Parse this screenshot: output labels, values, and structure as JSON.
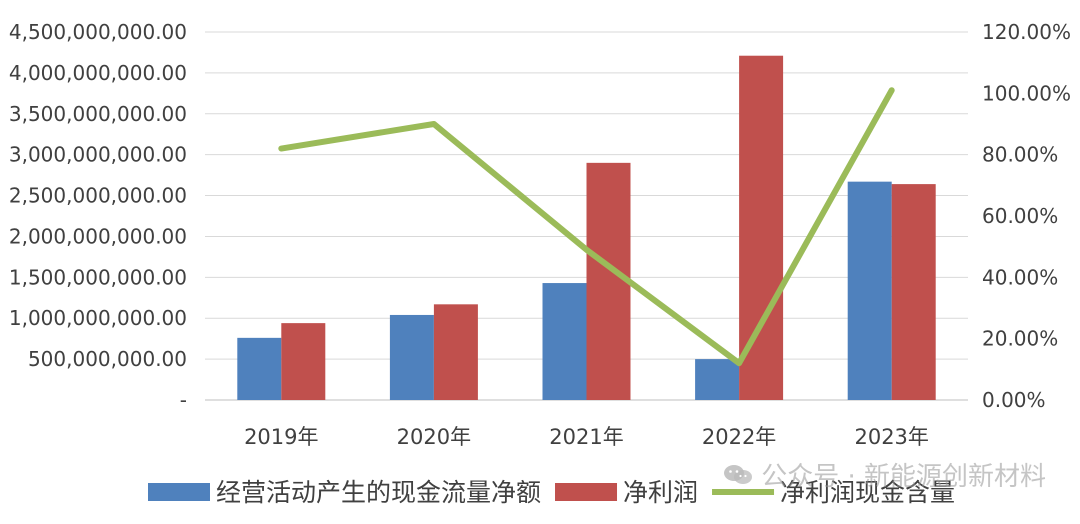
{
  "chart_data": {
    "type": "bar",
    "categories": [
      "2019年",
      "2020年",
      "2021年",
      "2022年",
      "2023年"
    ],
    "series": [
      {
        "name": "经营活动产生的现金流量净额",
        "type": "bar",
        "axis": "left",
        "color": "#4F81BD",
        "values": [
          760000000,
          1040000000,
          1430000000,
          500000000,
          2670000000
        ]
      },
      {
        "name": "净利润",
        "type": "bar",
        "axis": "left",
        "color": "#C0504D",
        "values": [
          940000000,
          1170000000,
          2900000000,
          4210000000,
          2640000000
        ]
      },
      {
        "name": "净利润现金含量",
        "type": "line",
        "axis": "right",
        "color": "#9BBB59",
        "values": [
          0.82,
          0.9,
          0.49,
          0.12,
          1.01
        ]
      }
    ],
    "y_left": {
      "min": 0,
      "max": 4500000000,
      "ticks": [
        "-",
        "500,000,000.00",
        "1,000,000,000.00",
        "1,500,000,000.00",
        "2,000,000,000.00",
        "2,500,000,000.00",
        "3,000,000,000.00",
        "3,500,000,000.00",
        "4,000,000,000.00",
        "4,500,000,000.00"
      ]
    },
    "y_right": {
      "min": 0,
      "max": 1.2,
      "ticks": [
        "0.00%",
        "20.00%",
        "40.00%",
        "60.00%",
        "80.00%",
        "100.00%",
        "120.00%"
      ]
    },
    "grid": true,
    "legend_position": "bottom"
  },
  "watermark": {
    "text": "公众号 · 新能源创新材料",
    "icon": "wechat-icon"
  }
}
